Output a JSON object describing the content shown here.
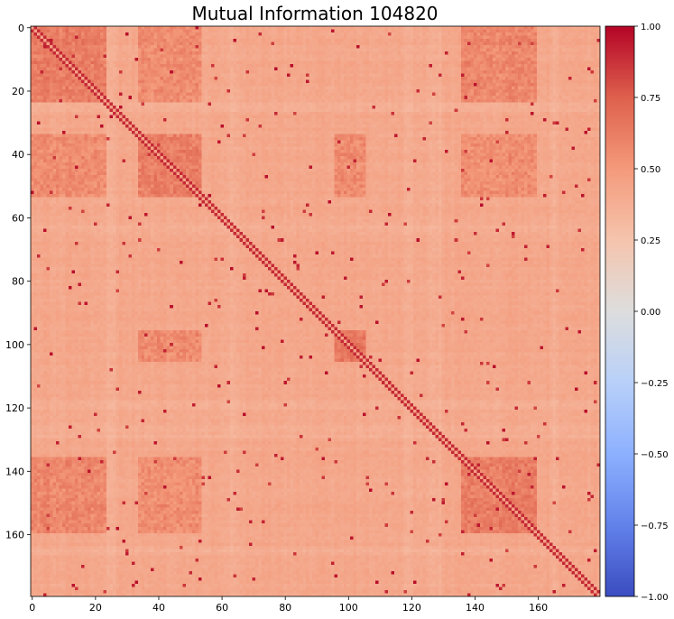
{
  "chart_data": {
    "type": "heatmap",
    "title": "Mutual Information 104820",
    "xlabel": "",
    "ylabel": "",
    "matrix_size": 180,
    "x_ticks": [
      0,
      20,
      40,
      60,
      80,
      100,
      120,
      140,
      160
    ],
    "y_ticks": [
      0,
      20,
      40,
      60,
      80,
      100,
      120,
      140,
      160
    ],
    "xlim": [
      -0.5,
      179.5
    ],
    "ylim": [
      179.5,
      -0.5
    ],
    "colormap": "coolwarm",
    "color_range": [
      -1.0,
      1.0
    ],
    "colorbar_ticks": [
      "1.00",
      "0.75",
      "0.50",
      "0.25",
      "0.00",
      "−0.25",
      "−0.50",
      "−0.75",
      "−1.00"
    ],
    "colorbar_tick_values": [
      1.0,
      0.75,
      0.5,
      0.25,
      0.0,
      -0.25,
      -0.5,
      -0.75,
      -1.0
    ],
    "diagonal_value": 1.0,
    "baseline_value": 0.42,
    "strong_blocks": [
      {
        "rows": [
          0,
          24
        ],
        "cols": [
          0,
          24
        ],
        "value": 0.62
      },
      {
        "rows": [
          34,
          54
        ],
        "cols": [
          34,
          54
        ],
        "value": 0.62
      },
      {
        "rows": [
          96,
          106
        ],
        "cols": [
          96,
          106
        ],
        "value": 0.64
      },
      {
        "rows": [
          136,
          160
        ],
        "cols": [
          136,
          160
        ],
        "value": 0.62
      },
      {
        "rows": [
          0,
          24
        ],
        "cols": [
          136,
          160
        ],
        "value": 0.58
      },
      {
        "rows": [
          136,
          160
        ],
        "cols": [
          0,
          24
        ],
        "value": 0.58
      },
      {
        "rows": [
          34,
          54
        ],
        "cols": [
          96,
          106
        ],
        "value": 0.56
      },
      {
        "rows": [
          96,
          106
        ],
        "cols": [
          34,
          54
        ],
        "value": 0.56
      },
      {
        "rows": [
          0,
          24
        ],
        "cols": [
          34,
          54
        ],
        "value": 0.56
      },
      {
        "rows": [
          34,
          54
        ],
        "cols": [
          0,
          24
        ],
        "value": 0.56
      },
      {
        "rows": [
          34,
          54
        ],
        "cols": [
          136,
          160
        ],
        "value": 0.55
      },
      {
        "rows": [
          136,
          160
        ],
        "cols": [
          34,
          54
        ],
        "value": 0.55
      }
    ],
    "weak_bands": [
      {
        "index": 24,
        "width": 3,
        "value": 0.34
      },
      {
        "index": 62,
        "width": 4,
        "value": 0.33
      },
      {
        "index": 118,
        "width": 3,
        "value": 0.34
      },
      {
        "index": 126,
        "width": 4,
        "value": 0.33
      },
      {
        "index": 164,
        "width": 3,
        "value": 0.35
      }
    ]
  }
}
